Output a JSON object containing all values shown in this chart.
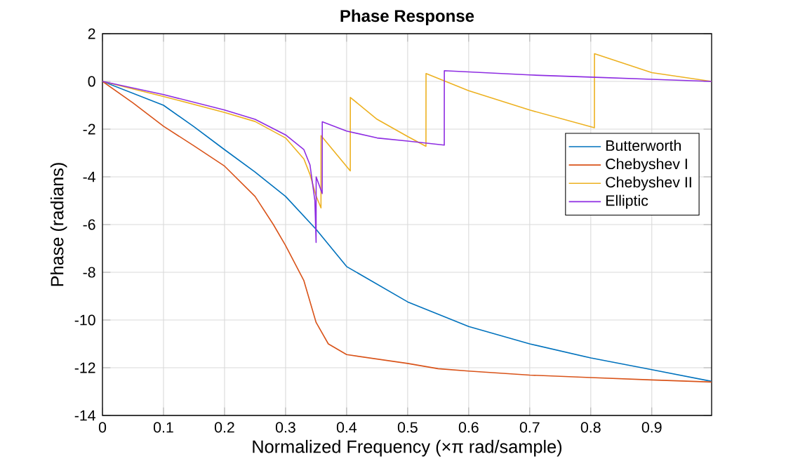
{
  "chart_data": {
    "type": "line",
    "title": "Phase Response",
    "xlabel": "Normalized Frequency  (×π rad/sample)",
    "ylabel": "Phase (radians)",
    "xlim": [
      0,
      0.998
    ],
    "ylim": [
      -14,
      2
    ],
    "xticks": [
      0,
      0.1,
      0.2,
      0.3,
      0.4,
      0.5,
      0.6,
      0.7,
      0.8,
      0.9
    ],
    "yticks": [
      -14,
      -12,
      -10,
      -8,
      -6,
      -4,
      -2,
      0,
      2
    ],
    "grid": true,
    "legend": "right",
    "marker": "none",
    "line_style": "solid",
    "series": [
      {
        "name": "Butterworth",
        "color": "#0072bd",
        "x": [
          0,
          0.05,
          0.1,
          0.15,
          0.2,
          0.25,
          0.3,
          0.35,
          0.4,
          0.5,
          0.55,
          0.6,
          0.7,
          0.8,
          0.9,
          0.998
        ],
        "values": [
          0,
          -0.5,
          -1.0,
          -1.9,
          -2.86,
          -3.8,
          -4.82,
          -6.2,
          -7.76,
          -9.24,
          -9.76,
          -10.27,
          -11.0,
          -11.59,
          -12.08,
          -12.57
        ]
      },
      {
        "name": "Chebyshev I",
        "color": "#d95319",
        "x": [
          0,
          0.05,
          0.1,
          0.15,
          0.2,
          0.25,
          0.28,
          0.3,
          0.33,
          0.35,
          0.37,
          0.4,
          0.5,
          0.55,
          0.6,
          0.7,
          0.8,
          0.9,
          0.998
        ],
        "values": [
          0,
          -0.9,
          -1.88,
          -2.7,
          -3.55,
          -4.82,
          -6.0,
          -6.88,
          -8.35,
          -10.1,
          -11.0,
          -11.45,
          -11.82,
          -12.04,
          -12.14,
          -12.31,
          -12.41,
          -12.51,
          -12.6
        ]
      },
      {
        "name": "Chebyshev II",
        "color": "#edb120",
        "x": [
          0,
          0.1,
          0.2,
          0.25,
          0.3,
          0.33,
          0.34,
          0.35,
          0.358,
          0.3581,
          0.406,
          0.4061,
          0.45,
          0.5,
          0.53,
          0.5301,
          0.6,
          0.7,
          0.806,
          0.8061,
          0.9,
          0.998
        ],
        "values": [
          0,
          -0.63,
          -1.3,
          -1.68,
          -2.37,
          -3.25,
          -3.9,
          -4.8,
          -5.3,
          -2.27,
          -3.75,
          -0.67,
          -1.59,
          -2.31,
          -2.72,
          0.33,
          -0.39,
          -1.2,
          -1.94,
          1.16,
          0.37,
          0
        ]
      },
      {
        "name": "Elliptic",
        "color": "#8e2de2",
        "x": [
          0,
          0.1,
          0.2,
          0.25,
          0.3,
          0.33,
          0.34,
          0.348,
          0.35,
          0.3501,
          0.36,
          0.3601,
          0.4,
          0.45,
          0.5,
          0.56,
          0.5601,
          0.7,
          0.8,
          0.9,
          0.998
        ],
        "values": [
          0,
          -0.55,
          -1.2,
          -1.59,
          -2.24,
          -2.86,
          -3.5,
          -5.0,
          -6.75,
          -4.0,
          -4.7,
          -1.69,
          -2.08,
          -2.37,
          -2.5,
          -2.67,
          0.45,
          0.27,
          0.18,
          0.09,
          0
        ]
      }
    ]
  }
}
